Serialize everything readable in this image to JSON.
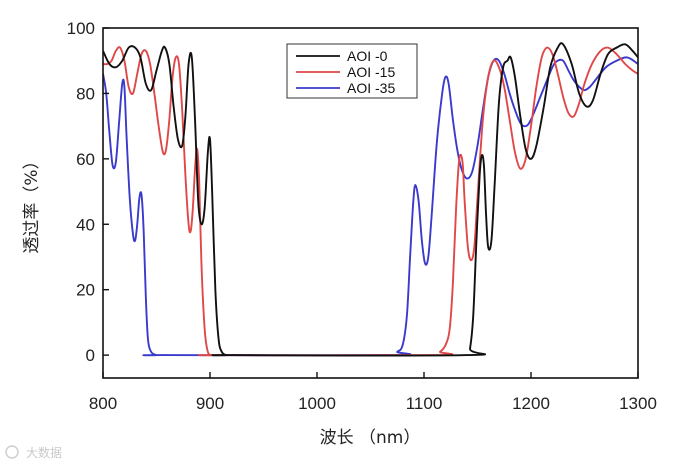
{
  "chart_data": {
    "type": "line",
    "title": "",
    "xlabel": "波长 （nm）",
    "ylabel": "透过率（%）",
    "xlim": [
      800,
      1300
    ],
    "ylim": [
      -7,
      100
    ],
    "xticks": [
      800,
      900,
      1000,
      1100,
      1200,
      1300
    ],
    "yticks": [
      0,
      20,
      40,
      60,
      80,
      100
    ],
    "legend_position": "top-center",
    "grid": false,
    "series": [
      {
        "name": "AOI -0",
        "color": "#111111",
        "points": [
          [
            800,
            93
          ],
          [
            806,
            89
          ],
          [
            812,
            88
          ],
          [
            818,
            90
          ],
          [
            824,
            94
          ],
          [
            830,
            94
          ],
          [
            835,
            91
          ],
          [
            840,
            83
          ],
          [
            845,
            81
          ],
          [
            850,
            87
          ],
          [
            855,
            93
          ],
          [
            858,
            94
          ],
          [
            862,
            89
          ],
          [
            866,
            76
          ],
          [
            870,
            66
          ],
          [
            874,
            64
          ],
          [
            877,
            73
          ],
          [
            880,
            89
          ],
          [
            883,
            91
          ],
          [
            886,
            72
          ],
          [
            889,
            47
          ],
          [
            892,
            40
          ],
          [
            895,
            45
          ],
          [
            898,
            62
          ],
          [
            900,
            66
          ],
          [
            902,
            50
          ],
          [
            905,
            20
          ],
          [
            908,
            5
          ],
          [
            911,
            1
          ],
          [
            915,
            0
          ],
          [
            920,
            0
          ],
          [
            1140,
            0
          ],
          [
            1143,
            2
          ],
          [
            1146,
            12
          ],
          [
            1149,
            35
          ],
          [
            1152,
            55
          ],
          [
            1154,
            61
          ],
          [
            1156,
            58
          ],
          [
            1158,
            43
          ],
          [
            1160,
            33
          ],
          [
            1163,
            35
          ],
          [
            1166,
            52
          ],
          [
            1170,
            77
          ],
          [
            1174,
            88
          ],
          [
            1178,
            90
          ],
          [
            1181,
            91
          ],
          [
            1185,
            85
          ],
          [
            1190,
            73
          ],
          [
            1195,
            63
          ],
          [
            1200,
            60
          ],
          [
            1205,
            64
          ],
          [
            1212,
            76
          ],
          [
            1218,
            88
          ],
          [
            1225,
            94
          ],
          [
            1230,
            95
          ],
          [
            1238,
            89
          ],
          [
            1245,
            80
          ],
          [
            1252,
            76
          ],
          [
            1258,
            78
          ],
          [
            1265,
            86
          ],
          [
            1272,
            92
          ],
          [
            1280,
            94
          ],
          [
            1288,
            95
          ],
          [
            1295,
            93
          ],
          [
            1300,
            91
          ]
        ]
      },
      {
        "name": "AOI -15",
        "color": "#e04848",
        "points": [
          [
            800,
            89
          ],
          [
            804,
            89
          ],
          [
            808,
            90
          ],
          [
            812,
            93
          ],
          [
            816,
            94
          ],
          [
            820,
            90
          ],
          [
            824,
            82
          ],
          [
            828,
            80
          ],
          [
            832,
            86
          ],
          [
            836,
            92
          ],
          [
            840,
            93
          ],
          [
            844,
            89
          ],
          [
            848,
            80
          ],
          [
            852,
            70
          ],
          [
            856,
            62
          ],
          [
            859,
            63
          ],
          [
            862,
            72
          ],
          [
            865,
            85
          ],
          [
            868,
            91
          ],
          [
            871,
            89
          ],
          [
            874,
            75
          ],
          [
            877,
            55
          ],
          [
            880,
            40
          ],
          [
            882,
            38
          ],
          [
            884,
            45
          ],
          [
            886,
            57
          ],
          [
            888,
            63
          ],
          [
            890,
            52
          ],
          [
            892,
            28
          ],
          [
            895,
            8
          ],
          [
            898,
            1
          ],
          [
            902,
            0
          ],
          [
            906,
            0
          ],
          [
            1110,
            0
          ],
          [
            1115,
            1
          ],
          [
            1120,
            3
          ],
          [
            1124,
            8
          ],
          [
            1127,
            22
          ],
          [
            1130,
            45
          ],
          [
            1133,
            60
          ],
          [
            1136,
            59
          ],
          [
            1138,
            47
          ],
          [
            1141,
            33
          ],
          [
            1144,
            29
          ],
          [
            1147,
            33
          ],
          [
            1150,
            48
          ],
          [
            1155,
            72
          ],
          [
            1160,
            85
          ],
          [
            1165,
            90
          ],
          [
            1170,
            88
          ],
          [
            1175,
            82
          ],
          [
            1180,
            72
          ],
          [
            1185,
            62
          ],
          [
            1190,
            57
          ],
          [
            1195,
            60
          ],
          [
            1200,
            70
          ],
          [
            1205,
            82
          ],
          [
            1210,
            91
          ],
          [
            1215,
            94
          ],
          [
            1220,
            92
          ],
          [
            1225,
            86
          ],
          [
            1230,
            79
          ],
          [
            1235,
            74
          ],
          [
            1240,
            73
          ],
          [
            1245,
            77
          ],
          [
            1250,
            83
          ],
          [
            1257,
            89
          ],
          [
            1265,
            93
          ],
          [
            1272,
            94
          ],
          [
            1280,
            92
          ],
          [
            1288,
            89
          ],
          [
            1295,
            87
          ],
          [
            1300,
            86
          ]
        ]
      },
      {
        "name": "AOI -35",
        "color": "#3a3acc",
        "points": [
          [
            800,
            86
          ],
          [
            803,
            80
          ],
          [
            806,
            68
          ],
          [
            809,
            58
          ],
          [
            812,
            59
          ],
          [
            815,
            71
          ],
          [
            818,
            83
          ],
          [
            820,
            82
          ],
          [
            822,
            67
          ],
          [
            825,
            48
          ],
          [
            828,
            37
          ],
          [
            830,
            35
          ],
          [
            832,
            40
          ],
          [
            834,
            48
          ],
          [
            836,
            49
          ],
          [
            838,
            38
          ],
          [
            840,
            18
          ],
          [
            842,
            5
          ],
          [
            845,
            1
          ],
          [
            850,
            0
          ],
          [
            855,
            0
          ],
          [
            1070,
            0
          ],
          [
            1075,
            1
          ],
          [
            1080,
            3
          ],
          [
            1084,
            12
          ],
          [
            1087,
            30
          ],
          [
            1090,
            47
          ],
          [
            1092,
            52
          ],
          [
            1095,
            47
          ],
          [
            1098,
            35
          ],
          [
            1101,
            28
          ],
          [
            1104,
            30
          ],
          [
            1107,
            42
          ],
          [
            1112,
            65
          ],
          [
            1117,
            80
          ],
          [
            1120,
            85
          ],
          [
            1123,
            83
          ],
          [
            1127,
            72
          ],
          [
            1131,
            63
          ],
          [
            1135,
            57
          ],
          [
            1140,
            54
          ],
          [
            1145,
            56
          ],
          [
            1150,
            64
          ],
          [
            1155,
            75
          ],
          [
            1160,
            85
          ],
          [
            1165,
            90
          ],
          [
            1170,
            90
          ],
          [
            1175,
            86
          ],
          [
            1180,
            80
          ],
          [
            1185,
            75
          ],
          [
            1190,
            71
          ],
          [
            1195,
            70
          ],
          [
            1200,
            72
          ],
          [
            1210,
            80
          ],
          [
            1220,
            88
          ],
          [
            1225,
            90
          ],
          [
            1230,
            90
          ],
          [
            1235,
            87
          ],
          [
            1240,
            84
          ],
          [
            1245,
            82
          ],
          [
            1250,
            81
          ],
          [
            1255,
            82
          ],
          [
            1260,
            84
          ],
          [
            1270,
            88
          ],
          [
            1280,
            90
          ],
          [
            1290,
            91
          ],
          [
            1300,
            89
          ]
        ]
      }
    ]
  },
  "watermark": "大数据"
}
